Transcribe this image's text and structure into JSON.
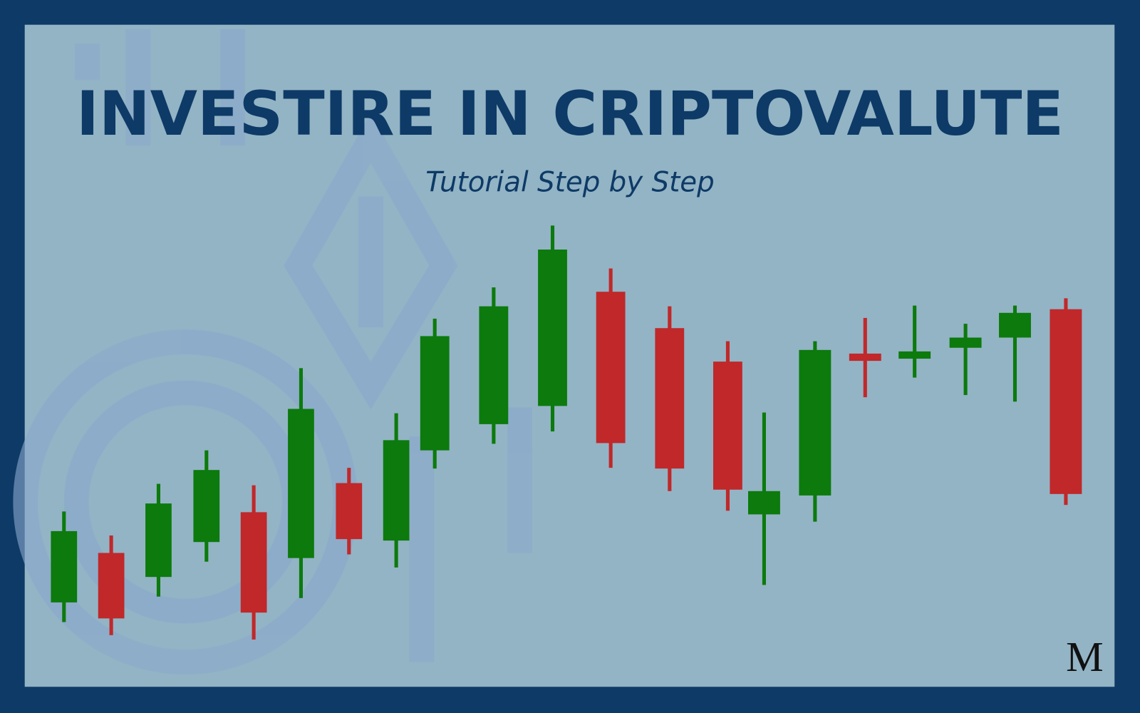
{
  "header": {
    "title": "INVESTIRE IN CRIPTOVALUTE",
    "subtitle": "Tutorial Step by Step"
  },
  "logo": {
    "text": "M"
  }
}
